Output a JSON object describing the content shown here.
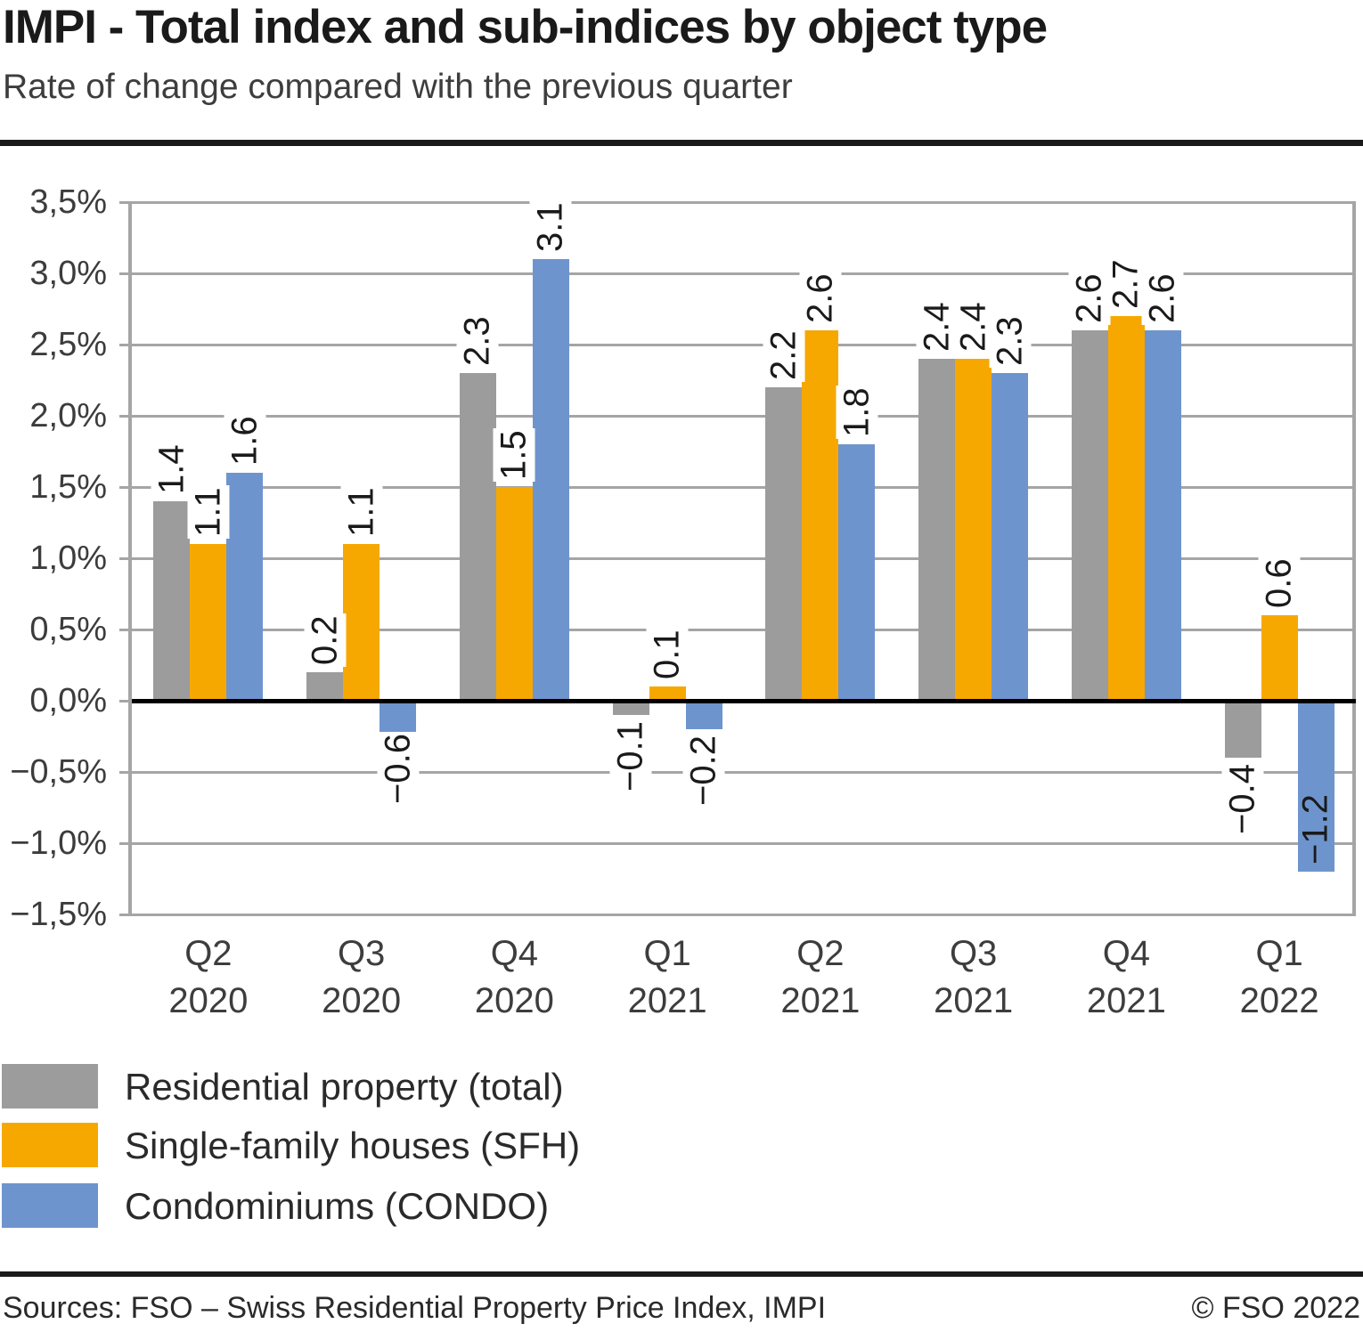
{
  "header": {
    "title": "IMPI - Total index and sub-indices by object type",
    "subtitle": "Rate of change compared with the previous quarter"
  },
  "chart_data": {
    "type": "bar",
    "categories": [
      {
        "quarter": "Q2",
        "year": "2020"
      },
      {
        "quarter": "Q3",
        "year": "2020"
      },
      {
        "quarter": "Q4",
        "year": "2020"
      },
      {
        "quarter": "Q1",
        "year": "2021"
      },
      {
        "quarter": "Q2",
        "year": "2021"
      },
      {
        "quarter": "Q3",
        "year": "2021"
      },
      {
        "quarter": "Q4",
        "year": "2021"
      },
      {
        "quarter": "Q1",
        "year": "2022"
      }
    ],
    "series": [
      {
        "name": "Residential property (total)",
        "color": "#9c9c9c",
        "values": [
          1.4,
          0.2,
          2.3,
          -0.1,
          2.2,
          2.4,
          2.6,
          -0.4
        ]
      },
      {
        "name": "Single-family houses (SFH)",
        "color": "#f6a800",
        "values": [
          1.1,
          1.1,
          1.5,
          0.1,
          2.6,
          2.4,
          2.7,
          0.6
        ]
      },
      {
        "name": "Condominiums (CONDO)",
        "color": "#6e94cd",
        "values": [
          1.6,
          -0.6,
          3.1,
          -0.2,
          1.8,
          2.3,
          2.6,
          -1.2
        ]
      }
    ],
    "ylim": [
      -1.5,
      3.5
    ],
    "ytick_step": 0.5,
    "ytick_suffix": "%",
    "ytick_decimal_separator": ",",
    "value_label_decimal_separator": ".",
    "grid": true,
    "legend_position": "bottom-left",
    "label_overrides": [
      {
        "series": 2,
        "category_index": 1,
        "dy": -66
      },
      {
        "series": 2,
        "category_index": 7,
        "placement": "inside"
      }
    ]
  },
  "footer": {
    "sources": "Sources: FSO – Swiss Residential Property Price Index, IMPI",
    "copyright": "© FSO 2022"
  }
}
